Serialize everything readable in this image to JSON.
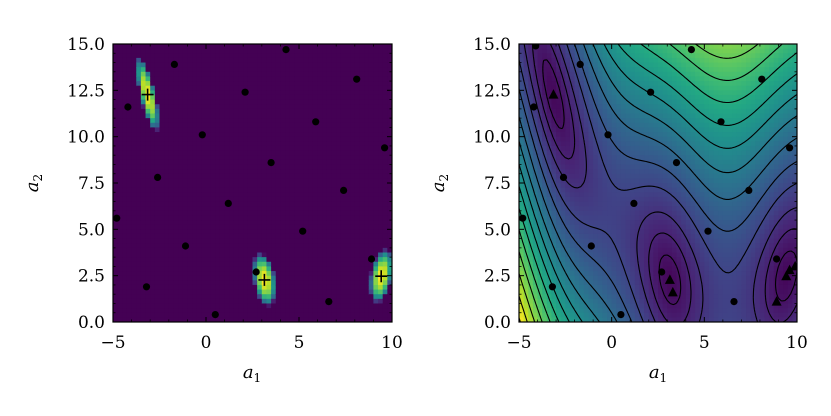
{
  "chart_data": [
    {
      "type": "heatmap",
      "title": "",
      "xlabel": "a",
      "xlabel_sub": "1",
      "ylabel": "a",
      "ylabel_sub": "2",
      "xlim": [
        -5,
        10
      ],
      "ylim": [
        0,
        15
      ],
      "xticks": [
        -5,
        0,
        5,
        10
      ],
      "xtick_labels": [
        "−5",
        "0",
        "5",
        "10"
      ],
      "yticks": [
        0,
        2.5,
        5,
        7.5,
        10,
        12.5,
        15
      ],
      "ytick_labels": [
        "0.0",
        "2.5",
        "5.0",
        "7.5",
        "10.0",
        "12.5",
        "15.0"
      ],
      "grid": false,
      "colormap": "viridis",
      "samples": [
        [
          -4.8,
          5.6
        ],
        [
          -4.2,
          11.6
        ],
        [
          -3.2,
          1.9
        ],
        [
          -2.6,
          7.8
        ],
        [
          -1.7,
          13.9
        ],
        [
          -1.1,
          4.1
        ],
        [
          -0.2,
          10.1
        ],
        [
          0.5,
          0.4
        ],
        [
          1.2,
          6.4
        ],
        [
          2.1,
          12.4
        ],
        [
          2.7,
          2.7
        ],
        [
          3.5,
          8.6
        ],
        [
          4.3,
          14.7
        ],
        [
          5.2,
          4.9
        ],
        [
          5.9,
          10.8
        ],
        [
          6.6,
          1.1
        ],
        [
          7.4,
          7.1
        ],
        [
          8.1,
          13.1
        ],
        [
          8.9,
          3.4
        ],
        [
          9.6,
          9.4
        ]
      ],
      "minima": [
        [
          -3.14,
          12.27
        ],
        [
          3.14,
          2.27
        ],
        [
          9.42,
          2.47
        ]
      ],
      "minima_marker": "plus"
    },
    {
      "type": "heatmap",
      "title": "",
      "xlabel": "a",
      "xlabel_sub": "1",
      "ylabel": "a",
      "ylabel_sub": "2",
      "xlim": [
        -5,
        10
      ],
      "ylim": [
        0,
        15
      ],
      "xticks": [
        -5,
        0,
        5,
        10
      ],
      "xtick_labels": [
        "−5",
        "0",
        "5",
        "10"
      ],
      "yticks": [
        0,
        2.5,
        5,
        7.5,
        10,
        12.5,
        15
      ],
      "ytick_labels": [
        "0.0",
        "2.5",
        "5.0",
        "7.5",
        "10.0",
        "12.5",
        "15.0"
      ],
      "grid": false,
      "colormap": "viridis",
      "contour_lines": true,
      "samples": [
        [
          -4.8,
          5.6
        ],
        [
          -4.2,
          11.6
        ],
        [
          -3.2,
          1.9
        ],
        [
          -2.6,
          7.8
        ],
        [
          -1.7,
          13.9
        ],
        [
          -1.1,
          4.1
        ],
        [
          -0.2,
          10.1
        ],
        [
          0.5,
          0.4
        ],
        [
          1.2,
          6.4
        ],
        [
          2.1,
          12.4
        ],
        [
          2.7,
          2.7
        ],
        [
          3.5,
          8.6
        ],
        [
          4.3,
          14.7
        ],
        [
          5.2,
          4.9
        ],
        [
          5.9,
          10.8
        ],
        [
          6.6,
          1.1
        ],
        [
          7.4,
          7.1
        ],
        [
          8.1,
          13.1
        ],
        [
          8.9,
          3.4
        ],
        [
          9.6,
          9.4
        ],
        [
          -4.1,
          14.9
        ]
      ],
      "minima": [
        [
          -3.14,
          12.27
        ],
        [
          3.14,
          2.27
        ],
        [
          9.42,
          2.47
        ]
      ],
      "extra_markers": [
        [
          3.3,
          1.6
        ],
        [
          8.9,
          1.1
        ],
        [
          9.6,
          2.8
        ],
        [
          9.9,
          3.0
        ]
      ],
      "minima_marker": "triangle"
    }
  ]
}
